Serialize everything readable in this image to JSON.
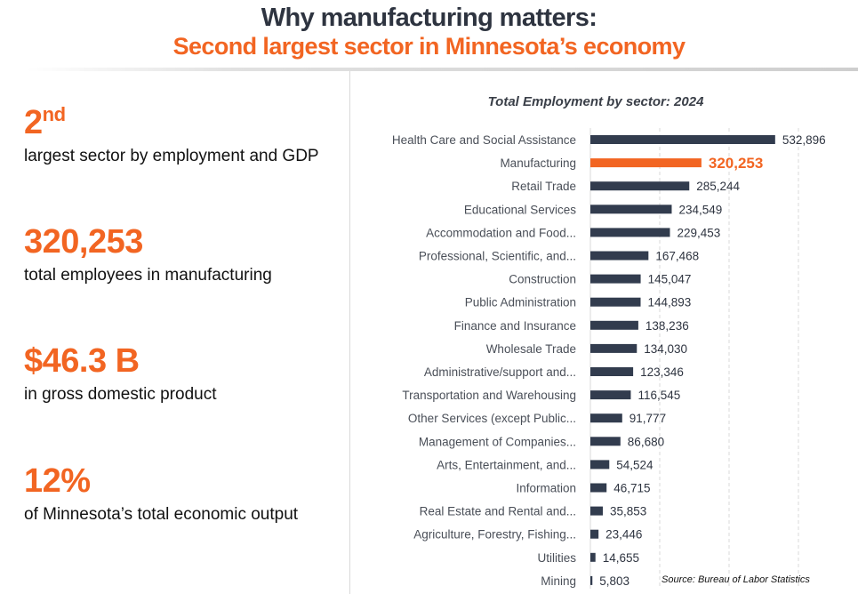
{
  "header": {
    "title": "Why manufacturing matters:",
    "subtitle": "Second largest sector in Minnesota’s economy"
  },
  "stats": [
    {
      "value": "2",
      "suffix": "nd",
      "description": "largest sector by employment and GDP"
    },
    {
      "value": "320,253",
      "suffix": "",
      "description": "total employees in manufacturing"
    },
    {
      "value": "$46.3 B",
      "suffix": "",
      "description": "in gross domestic product"
    },
    {
      "value": "12%",
      "suffix": "",
      "description": "of Minnesota’s total economic output"
    }
  ],
  "colors": {
    "accent": "#f26522",
    "bar": "#323c4e",
    "title_dark": "#2e3440"
  },
  "source": "Source: Bureau of Labor Statistics",
  "chart_data": {
    "type": "bar",
    "orientation": "horizontal",
    "title": "Total Employment by sector: 2024",
    "xlabel": "",
    "ylabel": "",
    "xlim": [
      0,
      600000
    ],
    "gridlines": [
      200000,
      400000,
      600000
    ],
    "grid": true,
    "highlight": "Manufacturing",
    "categories": [
      "Health Care and Social Assistance",
      "Manufacturing",
      "Retail Trade",
      "Educational Services",
      "Accommodation and Food...",
      "Professional, Scientific, and...",
      "Construction",
      "Public Administration",
      "Finance and Insurance",
      "Wholesale Trade",
      "Administrative/support and...",
      "Transportation and Warehousing",
      "Other Services (except Public...",
      "Management of Companies...",
      "Arts, Entertainment, and...",
      "Information",
      "Real Estate and Rental and...",
      "Agriculture, Forestry, Fishing...",
      "Utilities",
      "Mining"
    ],
    "values": [
      532896,
      320253,
      285244,
      234549,
      229453,
      167468,
      145047,
      144893,
      138236,
      134030,
      123346,
      116545,
      91777,
      86680,
      54524,
      46715,
      35853,
      23446,
      14655,
      5803
    ],
    "value_labels": [
      "532,896",
      "320,253",
      "285,244",
      "234,549",
      "229,453",
      "167,468",
      "145,047",
      "144,893",
      "138,236",
      "134,030",
      "123,346",
      "116,545",
      "91,777",
      "86,680",
      "54,524",
      "46,715",
      "35,853",
      "23,446",
      "14,655",
      "5,803"
    ]
  }
}
